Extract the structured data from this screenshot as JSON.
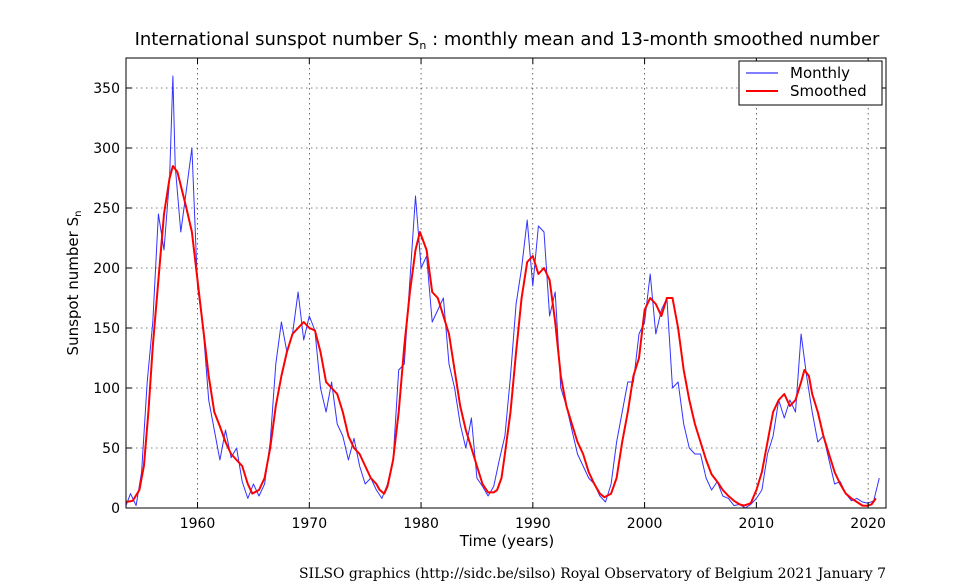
{
  "chart_data": {
    "type": "line",
    "title": "International sunspot number S",
    "title_subscript": "n",
    "title_suffix": " : monthly mean and 13-month smoothed number",
    "xlabel": "Time (years)",
    "ylabel": "Sunspot number S",
    "ylabel_subscript": "n",
    "xlim": [
      1953.6,
      2021.6
    ],
    "ylim": [
      0,
      375
    ],
    "xticks": [
      1960,
      1970,
      1980,
      1990,
      2000,
      2010,
      2020
    ],
    "yticks": [
      0,
      50,
      100,
      150,
      200,
      250,
      300,
      350
    ],
    "grid": true,
    "legend_position": "top-right",
    "series": [
      {
        "name": "Monthly",
        "color": "#3333ff",
        "x": [
          1953.6,
          1954.0,
          1954.5,
          1955.0,
          1955.5,
          1956.0,
          1956.5,
          1957.0,
          1957.5,
          1957.8,
          1958.0,
          1958.5,
          1959.0,
          1959.5,
          1960.0,
          1960.5,
          1961.0,
          1961.5,
          1962.0,
          1962.5,
          1963.0,
          1963.5,
          1964.0,
          1964.5,
          1965.0,
          1965.5,
          1966.0,
          1966.5,
          1967.0,
          1967.5,
          1968.0,
          1968.5,
          1969.0,
          1969.5,
          1970.0,
          1970.5,
          1971.0,
          1971.5,
          1972.0,
          1972.5,
          1973.0,
          1973.5,
          1974.0,
          1974.5,
          1975.0,
          1975.5,
          1976.0,
          1976.5,
          1977.0,
          1977.5,
          1978.0,
          1978.5,
          1979.0,
          1979.5,
          1980.0,
          1980.5,
          1981.0,
          1981.5,
          1982.0,
          1982.5,
          1983.0,
          1983.5,
          1984.0,
          1984.5,
          1985.0,
          1985.5,
          1986.0,
          1986.5,
          1987.0,
          1987.5,
          1988.0,
          1988.5,
          1989.0,
          1989.5,
          1990.0,
          1990.5,
          1991.0,
          1991.5,
          1992.0,
          1992.5,
          1993.0,
          1993.5,
          1994.0,
          1994.5,
          1995.0,
          1995.5,
          1996.0,
          1996.5,
          1997.0,
          1997.5,
          1998.0,
          1998.5,
          1999.0,
          1999.5,
          2000.0,
          2000.5,
          2001.0,
          2001.5,
          2002.0,
          2002.5,
          2003.0,
          2003.5,
          2004.0,
          2004.5,
          2005.0,
          2005.5,
          2006.0,
          2006.5,
          2007.0,
          2007.5,
          2008.0,
          2008.5,
          2009.0,
          2009.5,
          2010.0,
          2010.5,
          2011.0,
          2011.5,
          2012.0,
          2012.5,
          2013.0,
          2013.5,
          2014.0,
          2014.5,
          2015.0,
          2015.5,
          2016.0,
          2016.5,
          2017.0,
          2017.5,
          2018.0,
          2018.5,
          2019.0,
          2019.5,
          2020.0,
          2020.5,
          2021.0
        ],
        "values": [
          2,
          12,
          2,
          30,
          105,
          155,
          245,
          215,
          275,
          360,
          285,
          230,
          265,
          300,
          185,
          150,
          90,
          65,
          40,
          65,
          42,
          50,
          22,
          8,
          20,
          10,
          20,
          55,
          120,
          155,
          130,
          145,
          180,
          140,
          160,
          148,
          100,
          80,
          105,
          70,
          60,
          40,
          58,
          35,
          20,
          25,
          15,
          8,
          20,
          40,
          115,
          120,
          190,
          260,
          200,
          210,
          155,
          165,
          175,
          120,
          100,
          70,
          50,
          75,
          25,
          18,
          10,
          18,
          40,
          60,
          110,
          170,
          200,
          240,
          185,
          235,
          230,
          160,
          180,
          100,
          85,
          65,
          45,
          35,
          25,
          20,
          10,
          5,
          20,
          55,
          80,
          105,
          105,
          145,
          155,
          195,
          145,
          165,
          175,
          100,
          105,
          70,
          50,
          45,
          45,
          25,
          15,
          22,
          10,
          8,
          2,
          3,
          0,
          3,
          8,
          15,
          45,
          60,
          90,
          75,
          90,
          80,
          145,
          110,
          80,
          55,
          60,
          40,
          20,
          22,
          12,
          6,
          8,
          5,
          4,
          6,
          25
        ]
      },
      {
        "name": "Smoothed",
        "color": "#ff0000",
        "x": [
          1953.6,
          1954.2,
          1954.8,
          1955.2,
          1955.6,
          1956.0,
          1956.5,
          1957.0,
          1957.5,
          1957.8,
          1958.2,
          1958.6,
          1959.0,
          1959.5,
          1960.0,
          1960.5,
          1961.0,
          1961.5,
          1962.0,
          1962.5,
          1963.0,
          1963.5,
          1964.0,
          1964.5,
          1964.9,
          1965.5,
          1966.0,
          1966.5,
          1967.0,
          1967.5,
          1968.0,
          1968.5,
          1969.0,
          1969.5,
          1970.0,
          1970.5,
          1971.0,
          1971.5,
          1972.0,
          1972.5,
          1973.0,
          1973.5,
          1974.0,
          1974.5,
          1975.0,
          1975.5,
          1976.0,
          1976.3,
          1976.7,
          1977.0,
          1977.5,
          1978.0,
          1978.5,
          1979.0,
          1979.5,
          1979.9,
          1980.5,
          1981.0,
          1981.5,
          1982.0,
          1982.5,
          1983.0,
          1983.5,
          1984.0,
          1984.5,
          1985.0,
          1985.5,
          1986.0,
          1986.5,
          1986.8,
          1987.2,
          1987.5,
          1988.0,
          1988.5,
          1989.0,
          1989.5,
          1990.0,
          1990.5,
          1991.0,
          1991.5,
          1992.0,
          1992.5,
          1993.0,
          1993.5,
          1994.0,
          1994.5,
          1995.0,
          1995.5,
          1996.0,
          1996.4,
          1997.0,
          1997.5,
          1998.0,
          1998.5,
          1999.0,
          1999.5,
          2000.0,
          2000.5,
          2001.0,
          2001.5,
          2002.0,
          2002.5,
          2003.0,
          2003.5,
          2004.0,
          2004.5,
          2005.0,
          2005.5,
          2006.0,
          2006.5,
          2007.0,
          2007.5,
          2008.0,
          2008.5,
          2008.9,
          2009.5,
          2010.0,
          2010.5,
          2011.0,
          2011.5,
          2012.0,
          2012.5,
          2013.0,
          2013.5,
          2014.0,
          2014.3,
          2014.7,
          2015.0,
          2015.5,
          2016.0,
          2016.5,
          2017.0,
          2017.5,
          2018.0,
          2018.5,
          2019.0,
          2019.5,
          2019.9,
          2020.3,
          2020.7
        ],
        "values": [
          5,
          6,
          15,
          35,
          80,
          135,
          190,
          245,
          275,
          285,
          280,
          265,
          250,
          230,
          190,
          150,
          110,
          80,
          68,
          55,
          45,
          40,
          35,
          20,
          12,
          15,
          25,
          50,
          85,
          110,
          130,
          145,
          150,
          155,
          150,
          148,
          130,
          105,
          100,
          95,
          80,
          60,
          50,
          45,
          35,
          25,
          20,
          15,
          12,
          18,
          40,
          80,
          135,
          180,
          215,
          230,
          215,
          180,
          175,
          160,
          145,
          115,
          85,
          65,
          50,
          35,
          20,
          13,
          13,
          15,
          25,
          45,
          80,
          130,
          175,
          205,
          210,
          195,
          200,
          190,
          155,
          110,
          85,
          70,
          55,
          45,
          30,
          20,
          12,
          9,
          12,
          25,
          55,
          80,
          110,
          125,
          165,
          175,
          170,
          160,
          175,
          175,
          150,
          115,
          90,
          70,
          55,
          40,
          28,
          22,
          15,
          10,
          6,
          3,
          2,
          4,
          15,
          30,
          55,
          80,
          90,
          95,
          85,
          90,
          105,
          115,
          110,
          95,
          80,
          60,
          45,
          30,
          20,
          12,
          8,
          5,
          2,
          1.8,
          3,
          8
        ]
      }
    ]
  },
  "credit": "SILSO graphics (http://sidc.be/silso)  Royal Observatory of Belgium  2021 January 7"
}
